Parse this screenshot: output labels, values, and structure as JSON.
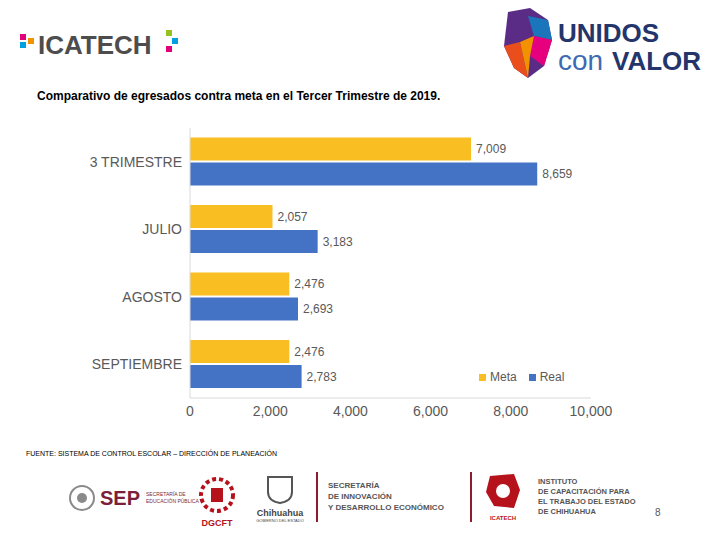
{
  "slide": {
    "header": {
      "left_logo": "ICATECH",
      "right_logo": [
        "UNIDOS",
        "con",
        "VALOR"
      ]
    },
    "source": "FUENTE: SISTEMA DE CONTROL ESCOLAR – DIRECCIÓN DE PLANEACIÓN",
    "footer_logos": [
      [
        "SEP",
        "SECRETARÍA DE",
        "EDUCACIÓN PÚBLICA"
      ],
      [
        "DGCFT"
      ],
      [
        "Chihuahua",
        "GOBIERNO DEL ESTADO"
      ],
      [
        "SECRETARÍA",
        "DE INNOVACIÓN",
        "Y DESARROLLO ECONÓMICO"
      ],
      [
        "ICATECH"
      ],
      [
        "INSTITUTO",
        "DE CAPACITACIÓN PARA",
        "EL TRABAJO DEL ESTADO",
        "DE CHIHUAHUA"
      ]
    ],
    "page": "8"
  },
  "chart_data": {
    "type": "bar",
    "orientation": "horizontal",
    "title": "Comparativo de egresados contra meta en el Tercer Trimestre de 2019.",
    "categories": [
      "3 TRIMESTRE",
      "JULIO",
      "AGOSTO",
      "SEPTIEMBRE"
    ],
    "series": [
      {
        "name": "Meta",
        "color": "#F9BE22",
        "values": [
          7009,
          2057,
          2476,
          2476
        ],
        "value_labels": [
          "7,009",
          "2,057",
          "2,476",
          "2,476"
        ]
      },
      {
        "name": "Real",
        "color": "#4472C4",
        "values": [
          8659,
          3183,
          2693,
          2783
        ],
        "value_labels": [
          "8,659",
          "3,183",
          "2,693",
          "2,783"
        ]
      }
    ],
    "xlim": [
      0,
      10000
    ],
    "xticks": [
      0,
      {
        "value": 2000,
        "label": "2,000"
      },
      {
        "value": 4000,
        "label": "4,000"
      },
      {
        "value": 6000,
        "label": "6,000"
      },
      {
        "value": 8000,
        "label": "8,000"
      },
      {
        "value": 10000,
        "label": "10,000"
      }
    ],
    "data_labels": true,
    "legend": "lower right",
    "grid": false
  }
}
